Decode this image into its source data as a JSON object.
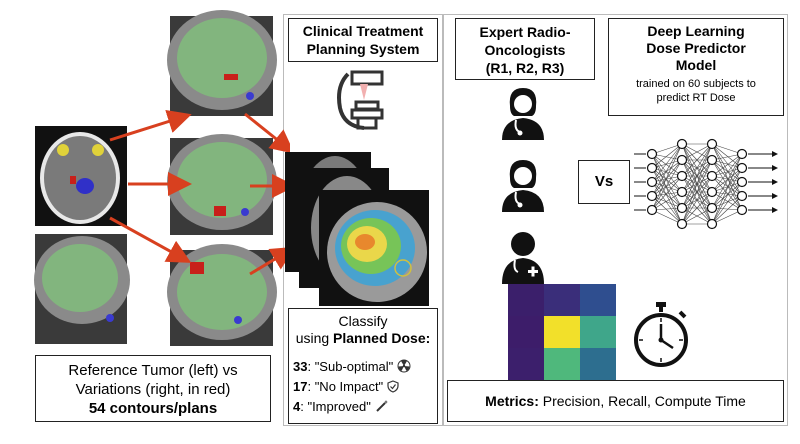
{
  "reference_box": {
    "line1": "Reference Tumor (left) vs",
    "line2": "Variations (right, in red)",
    "line3": "54 contours/plans"
  },
  "tps": {
    "title_line1": "Clinical Treatment",
    "title_line2": "Planning System"
  },
  "classify": {
    "line1": "Classify",
    "line2_prefix": "using ",
    "line2_bold": "Planned Dose:",
    "items": [
      {
        "count": "33",
        "label": ": \"Sub-optimal\""
      },
      {
        "count": "17",
        "label": ": \"No Impact\""
      },
      {
        "count": "4",
        "label": ": \"Improved\""
      }
    ]
  },
  "experts": {
    "title_line1": "Expert Radio-",
    "title_line2": "Oncologists",
    "title_line3": "(R1, R2, R3)"
  },
  "vs_label": "Vs",
  "model": {
    "title_line1": "Deep Learning",
    "title_line2": "Dose Predictor",
    "title_line3": "Model",
    "sub_line1": "trained on 60 subjects to",
    "sub_line2": "predict RT Dose"
  },
  "metrics": {
    "bold": "Metrics:",
    "rest": " Precision, Recall, Compute Time"
  },
  "confusion_matrix": {
    "cells": [
      [
        "#3b1f6b",
        "#3a2e7a",
        "#2f4e8f"
      ],
      [
        "#3d1d6a",
        "#f2e02a",
        "#3fa68a"
      ],
      [
        "#3c1f6c",
        "#4fb87c",
        "#2d6e8f"
      ]
    ]
  },
  "colors": {
    "arrow": "#d8401f",
    "tumor_green": "#7fbf7a",
    "variation_red": "#c8201a"
  }
}
